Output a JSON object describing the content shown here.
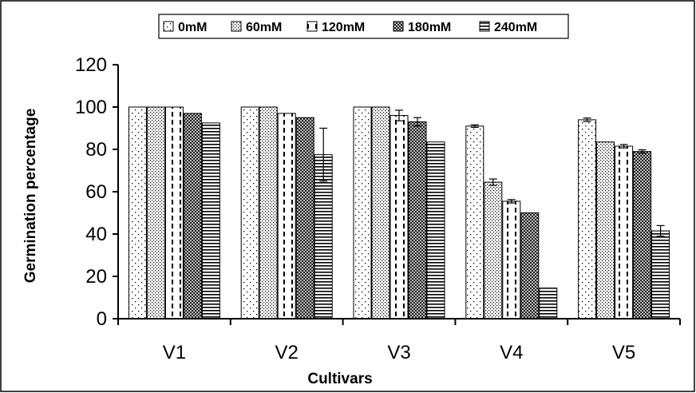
{
  "chart_data": {
    "type": "bar",
    "categories": [
      "V1",
      "V2",
      "V3",
      "V4",
      "V5"
    ],
    "series": [
      {
        "name": "0mM",
        "pattern": "pat-sparse-dots",
        "values": [
          100,
          100,
          100,
          91,
          94
        ],
        "errors": [
          0,
          0,
          0,
          0.6,
          0.8
        ]
      },
      {
        "name": "60mM",
        "pattern": "pat-dense-dots",
        "values": [
          100,
          100,
          100,
          64.5,
          83.5
        ],
        "errors": [
          0,
          0,
          0,
          1.5,
          0
        ]
      },
      {
        "name": "120mM",
        "pattern": "pat-dashed-vert",
        "values": [
          100,
          97,
          96,
          55.5,
          81.5
        ],
        "errors": [
          0,
          0,
          2.5,
          0.8,
          0.8
        ]
      },
      {
        "name": "180mM",
        "pattern": "pat-checker",
        "values": [
          97,
          95,
          93,
          50,
          79
        ],
        "errors": [
          0,
          0,
          2,
          0,
          0.8
        ]
      },
      {
        "name": "240mM",
        "pattern": "pat-horiz-lines",
        "values": [
          92.5,
          77.5,
          83.5,
          14.5,
          41.5
        ],
        "errors": [
          0,
          12.5,
          0,
          0,
          2.5
        ]
      }
    ],
    "xlabel": "Cultivars",
    "ylabel": "Germination percentage",
    "ylim": [
      0,
      120
    ],
    "yticks": [
      "0",
      "20",
      "40",
      "60",
      "80",
      "100",
      "120"
    ],
    "grid": false,
    "legend_position": "top-center"
  }
}
